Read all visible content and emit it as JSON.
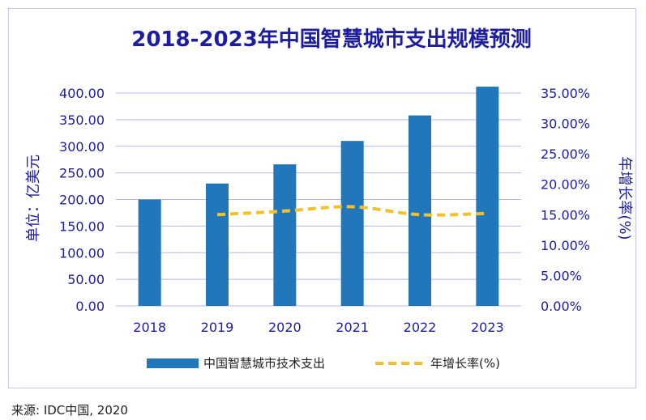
{
  "chart_data": {
    "type": "bar",
    "title": "2018-2023年中国智慧城市支出规模预测",
    "ylabel": "单位：亿美元",
    "y2label": "年增长率(%)",
    "categories": [
      "2018",
      "2019",
      "2020",
      "2021",
      "2022",
      "2023"
    ],
    "ylim": [
      0,
      400
    ],
    "y_ticks": [
      "0.00",
      "50.00",
      "100.00",
      "150.00",
      "200.00",
      "250.00",
      "300.00",
      "350.00",
      "400.00"
    ],
    "y2lim": [
      0,
      35
    ],
    "y2_ticks": [
      "0.00%",
      "5.00%",
      "10.00%",
      "15.00%",
      "20.00%",
      "25.00%",
      "30.00%",
      "35.00%"
    ],
    "grid": true,
    "legend_position": "bottom",
    "series": [
      {
        "name": "中国智慧城市技术支出",
        "type": "bar",
        "axis": "left",
        "color": "#2277bb",
        "values": [
          200,
          230,
          266,
          310,
          358,
          412
        ]
      },
      {
        "name": "年增长率(%)",
        "type": "line",
        "axis": "right",
        "color": "#f2c12e",
        "dashed": true,
        "values": [
          null,
          15.0,
          15.6,
          16.3,
          15.0,
          15.2
        ]
      }
    ]
  },
  "footer": {
    "source": "来源: IDC中国, 2020"
  }
}
